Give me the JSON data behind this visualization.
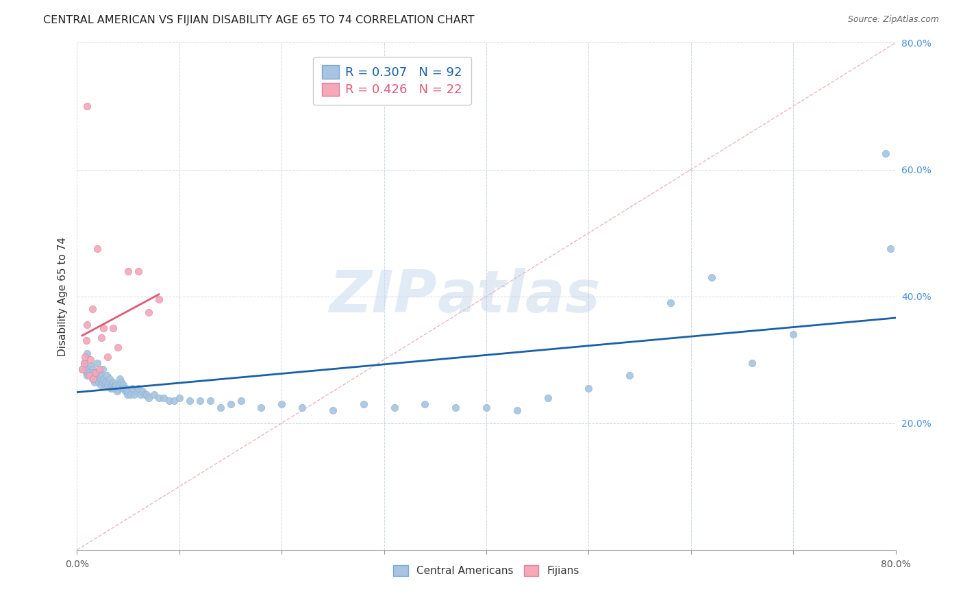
{
  "title": "CENTRAL AMERICAN VS FIJIAN DISABILITY AGE 65 TO 74 CORRELATION CHART",
  "source": "Source: ZipAtlas.com",
  "ylabel": "Disability Age 65 to 74",
  "xlim": [
    0.0,
    0.8
  ],
  "ylim": [
    0.0,
    0.8
  ],
  "xticks": [
    0.0,
    0.1,
    0.2,
    0.3,
    0.4,
    0.5,
    0.6,
    0.7,
    0.8
  ],
  "xticklabels_visible": [
    "0.0%",
    "",
    "",
    "",
    "",
    "",
    "",
    "",
    "80.0%"
  ],
  "yticks": [
    0.0,
    0.2,
    0.4,
    0.6,
    0.8
  ],
  "yticklabels": [
    "",
    "20.0%",
    "40.0%",
    "60.0%",
    "80.0%"
  ],
  "blue_R": 0.307,
  "blue_N": 92,
  "pink_R": 0.426,
  "pink_N": 22,
  "blue_color": "#a8c4e0",
  "pink_color": "#f4a8b8",
  "blue_line_color": "#1a5fa8",
  "pink_line_color": "#e05878",
  "diagonal_color": "#e8b0b8",
  "background_color": "#ffffff",
  "grid_color": "#d0d8e8",
  "blue_points_x": [
    0.005,
    0.007,
    0.008,
    0.009,
    0.01,
    0.01,
    0.011,
    0.012,
    0.013,
    0.014,
    0.015,
    0.015,
    0.016,
    0.017,
    0.018,
    0.019,
    0.02,
    0.02,
    0.021,
    0.022,
    0.022,
    0.023,
    0.023,
    0.024,
    0.025,
    0.025,
    0.026,
    0.027,
    0.028,
    0.029,
    0.03,
    0.031,
    0.032,
    0.033,
    0.034,
    0.035,
    0.036,
    0.037,
    0.038,
    0.039,
    0.04,
    0.041,
    0.042,
    0.043,
    0.044,
    0.045,
    0.046,
    0.047,
    0.048,
    0.049,
    0.05,
    0.052,
    0.054,
    0.056,
    0.058,
    0.06,
    0.062,
    0.064,
    0.066,
    0.068,
    0.07,
    0.075,
    0.08,
    0.085,
    0.09,
    0.095,
    0.1,
    0.11,
    0.12,
    0.13,
    0.14,
    0.15,
    0.16,
    0.18,
    0.2,
    0.22,
    0.25,
    0.28,
    0.31,
    0.34,
    0.37,
    0.4,
    0.43,
    0.46,
    0.5,
    0.54,
    0.58,
    0.62,
    0.66,
    0.7,
    0.79,
    0.795
  ],
  "blue_points_y": [
    0.285,
    0.295,
    0.29,
    0.28,
    0.275,
    0.31,
    0.285,
    0.28,
    0.275,
    0.29,
    0.27,
    0.285,
    0.28,
    0.265,
    0.275,
    0.28,
    0.27,
    0.295,
    0.265,
    0.275,
    0.28,
    0.27,
    0.26,
    0.275,
    0.265,
    0.285,
    0.27,
    0.26,
    0.265,
    0.275,
    0.26,
    0.265,
    0.27,
    0.255,
    0.26,
    0.265,
    0.255,
    0.26,
    0.26,
    0.25,
    0.255,
    0.26,
    0.27,
    0.265,
    0.255,
    0.26,
    0.255,
    0.25,
    0.255,
    0.245,
    0.25,
    0.245,
    0.255,
    0.245,
    0.25,
    0.255,
    0.245,
    0.25,
    0.245,
    0.245,
    0.24,
    0.245,
    0.24,
    0.24,
    0.235,
    0.235,
    0.24,
    0.235,
    0.235,
    0.235,
    0.225,
    0.23,
    0.235,
    0.225,
    0.23,
    0.225,
    0.22,
    0.23,
    0.225,
    0.23,
    0.225,
    0.225,
    0.22,
    0.24,
    0.255,
    0.275,
    0.39,
    0.43,
    0.295,
    0.34,
    0.625,
    0.475
  ],
  "pink_points_x": [
    0.005,
    0.007,
    0.008,
    0.009,
    0.01,
    0.01,
    0.012,
    0.013,
    0.015,
    0.016,
    0.018,
    0.02,
    0.022,
    0.024,
    0.026,
    0.03,
    0.035,
    0.04,
    0.05,
    0.06,
    0.07,
    0.08
  ],
  "pink_points_y": [
    0.285,
    0.295,
    0.305,
    0.33,
    0.355,
    0.7,
    0.275,
    0.3,
    0.38,
    0.27,
    0.28,
    0.475,
    0.285,
    0.335,
    0.35,
    0.305,
    0.35,
    0.32,
    0.44,
    0.44,
    0.375,
    0.395
  ],
  "watermark_zip": "ZIP",
  "watermark_atlas": "atlas",
  "legend_items": [
    {
      "label": "R = 0.307   N = 92",
      "color": "#a8c4e0",
      "edge": "#7aaad0",
      "text_color": "#1a5fa8"
    },
    {
      "label": "R = 0.426   N = 22",
      "color": "#f4a8b8",
      "edge": "#e080a0",
      "text_color": "#e05878"
    }
  ],
  "bottom_legend": [
    {
      "label": "Central Americans",
      "color": "#a8c4e0",
      "edge": "#7aaad0"
    },
    {
      "label": "Fijians",
      "color": "#f4a8b8",
      "edge": "#e080a0"
    }
  ]
}
